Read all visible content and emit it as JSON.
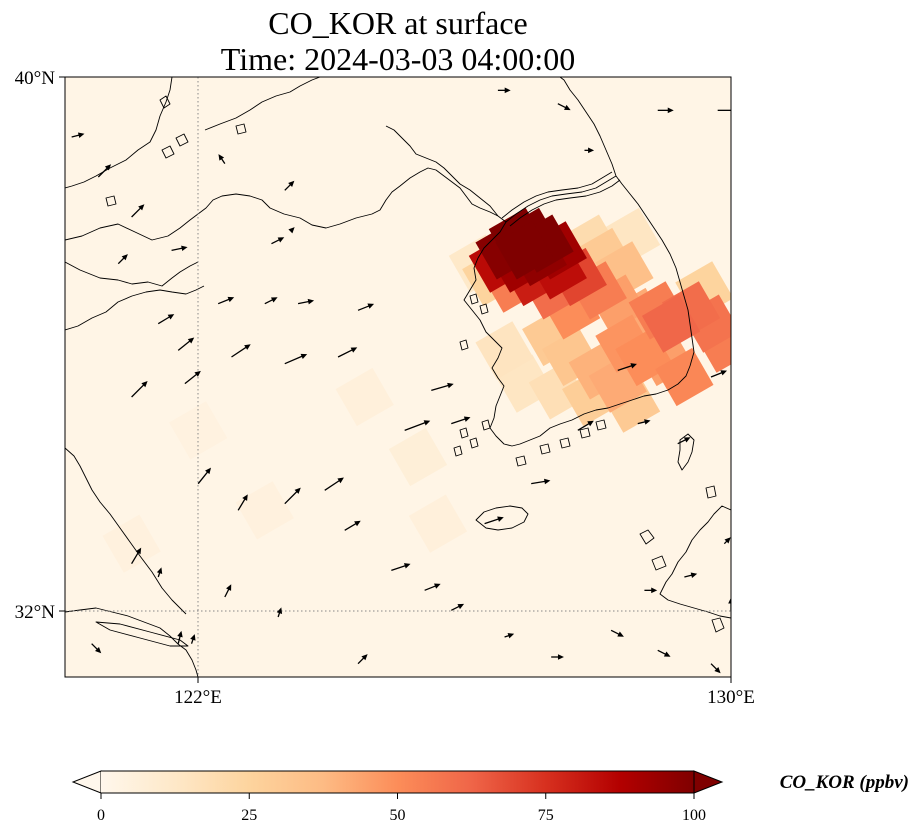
{
  "title": {
    "line1": "CO_KOR at surface",
    "line2": "Time: 2024-03-03 04:00:00"
  },
  "axes": {
    "lat_labels": [
      "40°N",
      "32°N"
    ],
    "lon_labels": [
      "122°E",
      "130°E"
    ],
    "extent": {
      "lon_min": 120,
      "lon_max": 130,
      "lat_min": 31,
      "lat_max": 40
    },
    "gridlines": {
      "lon": [
        122
      ],
      "lat": [
        32
      ],
      "style": "dotted"
    }
  },
  "colorbar": {
    "label": "CO_KOR (ppbv)",
    "ticks": [
      "0",
      "25",
      "50",
      "75",
      "100"
    ],
    "tick_values": [
      0,
      25,
      50,
      75,
      100
    ],
    "range": [
      0,
      100
    ],
    "extend": "both",
    "colormap": "OrRd",
    "colors": [
      "#fff7ec",
      "#fee8c8",
      "#fdd49e",
      "#fdbb84",
      "#fc8d59",
      "#ef6548",
      "#d7301f",
      "#b30000",
      "#7f0000"
    ]
  },
  "field": {
    "units": "ppbv",
    "background_value": 2,
    "cells": [
      [
        126.8,
        37.6,
        100
      ],
      [
        127.0,
        37.6,
        100
      ],
      [
        127.2,
        37.5,
        100
      ],
      [
        126.6,
        37.4,
        98
      ],
      [
        126.9,
        37.4,
        100
      ],
      [
        127.1,
        37.3,
        96
      ],
      [
        127.4,
        37.4,
        92
      ],
      [
        126.5,
        37.2,
        85
      ],
      [
        126.8,
        37.2,
        92
      ],
      [
        127.4,
        37.1,
        84
      ],
      [
        127.0,
        37.0,
        80
      ],
      [
        127.7,
        37.0,
        70
      ],
      [
        126.7,
        36.9,
        55
      ],
      [
        127.3,
        36.8,
        60
      ],
      [
        128.0,
        36.8,
        55
      ],
      [
        127.6,
        36.5,
        50
      ],
      [
        128.3,
        36.6,
        45
      ],
      [
        128.6,
        36.4,
        42
      ],
      [
        128.9,
        36.5,
        55
      ],
      [
        129.1,
        36.3,
        62
      ],
      [
        129.4,
        36.5,
        60
      ],
      [
        129.7,
        36.3,
        58
      ],
      [
        129.9,
        36.0,
        55
      ],
      [
        128.4,
        36.0,
        48
      ],
      [
        128.7,
        35.8,
        50
      ],
      [
        129.0,
        35.8,
        45
      ],
      [
        129.3,
        35.5,
        52
      ],
      [
        128.0,
        35.6,
        40
      ],
      [
        128.3,
        35.4,
        42
      ],
      [
        127.6,
        35.8,
        32
      ],
      [
        127.3,
        36.1,
        30
      ],
      [
        127.9,
        35.2,
        28
      ],
      [
        128.5,
        35.1,
        30
      ],
      [
        128.1,
        37.3,
        30
      ],
      [
        128.4,
        37.1,
        35
      ],
      [
        127.9,
        37.5,
        20
      ],
      [
        128.5,
        37.6,
        14
      ],
      [
        126.4,
        37.0,
        25
      ],
      [
        126.2,
        37.2,
        12
      ],
      [
        129.6,
        36.8,
        25
      ],
      [
        126.9,
        35.4,
        14
      ],
      [
        127.4,
        35.3,
        18
      ],
      [
        126.6,
        35.9,
        15
      ],
      [
        124.5,
        35.2,
        6
      ],
      [
        125.3,
        34.3,
        7
      ],
      [
        125.6,
        33.3,
        6
      ],
      [
        123.0,
        33.5,
        5
      ],
      [
        122.0,
        34.7,
        4
      ],
      [
        121.0,
        33.0,
        5
      ]
    ]
  },
  "wind_vectors": [
    [
      120.1,
      39.1,
      0.4,
      0.1
    ],
    [
      120.5,
      38.5,
      0.4,
      0.4
    ],
    [
      121.0,
      37.9,
      0.4,
      0.4
    ],
    [
      120.8,
      37.2,
      0.3,
      0.3
    ],
    [
      121.6,
      37.4,
      0.5,
      0.1
    ],
    [
      122.4,
      38.7,
      -0.2,
      0.3
    ],
    [
      123.3,
      38.3,
      0.3,
      0.3
    ],
    [
      123.1,
      37.5,
      0.4,
      0.2
    ],
    [
      123.4,
      37.7,
      0.1,
      0.1
    ],
    [
      122.3,
      36.6,
      0.5,
      0.2
    ],
    [
      123.0,
      36.6,
      0.4,
      0.2
    ],
    [
      123.5,
      36.6,
      0.5,
      0.1
    ],
    [
      124.4,
      36.5,
      0.5,
      0.2
    ],
    [
      121.4,
      36.3,
      0.5,
      0.3
    ],
    [
      121.7,
      35.9,
      0.5,
      0.4
    ],
    [
      122.5,
      35.8,
      0.6,
      0.4
    ],
    [
      123.3,
      35.7,
      0.7,
      0.3
    ],
    [
      124.1,
      35.8,
      0.6,
      0.3
    ],
    [
      121.0,
      35.2,
      0.5,
      0.5
    ],
    [
      121.8,
      35.4,
      0.5,
      0.4
    ],
    [
      125.5,
      35.3,
      0.7,
      0.2
    ],
    [
      125.1,
      34.7,
      0.8,
      0.3
    ],
    [
      125.8,
      34.8,
      0.6,
      0.2
    ],
    [
      122.0,
      33.9,
      0.4,
      0.5
    ],
    [
      122.6,
      33.5,
      0.3,
      0.5
    ],
    [
      123.3,
      33.6,
      0.5,
      0.5
    ],
    [
      123.9,
      33.8,
      0.6,
      0.4
    ],
    [
      124.2,
      33.2,
      0.5,
      0.3
    ],
    [
      121.0,
      32.7,
      0.3,
      0.5
    ],
    [
      121.4,
      32.5,
      0.1,
      0.3
    ],
    [
      122.4,
      32.2,
      0.2,
      0.4
    ],
    [
      123.2,
      31.9,
      0.1,
      0.3
    ],
    [
      121.7,
      31.5,
      0.1,
      0.4
    ],
    [
      124.9,
      32.6,
      0.6,
      0.2
    ],
    [
      125.4,
      32.3,
      0.5,
      0.2
    ],
    [
      125.8,
      32.0,
      0.4,
      0.2
    ],
    [
      126.6,
      31.6,
      0.3,
      0.1
    ],
    [
      127.3,
      31.3,
      0.4,
      0.0
    ],
    [
      126.3,
      33.3,
      0.6,
      0.2
    ],
    [
      127.0,
      33.9,
      0.6,
      0.1
    ],
    [
      127.7,
      34.7,
      0.5,
      0.3
    ],
    [
      128.3,
      35.6,
      0.6,
      0.2
    ],
    [
      128.6,
      34.8,
      0.4,
      0.1
    ],
    [
      129.2,
      34.5,
      0.4,
      0.2
    ],
    [
      129.7,
      35.5,
      0.5,
      0.2
    ],
    [
      129.9,
      33.0,
      0.2,
      0.2
    ],
    [
      129.3,
      32.5,
      0.4,
      0.1
    ],
    [
      128.7,
      32.3,
      0.4,
      0.0
    ],
    [
      128.2,
      31.7,
      0.4,
      -0.2
    ],
    [
      128.9,
      31.4,
      0.4,
      -0.2
    ],
    [
      129.7,
      31.2,
      0.3,
      -0.3
    ],
    [
      130.0,
      32.0,
      0.0,
      0.4
    ],
    [
      126.5,
      39.8,
      0.4,
      0.0
    ],
    [
      127.4,
      39.6,
      0.4,
      -0.2
    ],
    [
      127.8,
      38.9,
      0.3,
      0.0
    ],
    [
      128.9,
      39.5,
      0.5,
      0.0
    ],
    [
      129.8,
      39.5,
      0.6,
      0.0
    ],
    [
      120.4,
      31.5,
      0.3,
      -0.3
    ],
    [
      121.9,
      31.5,
      0.1,
      0.3
    ],
    [
      124.4,
      31.2,
      0.3,
      0.3
    ]
  ]
}
